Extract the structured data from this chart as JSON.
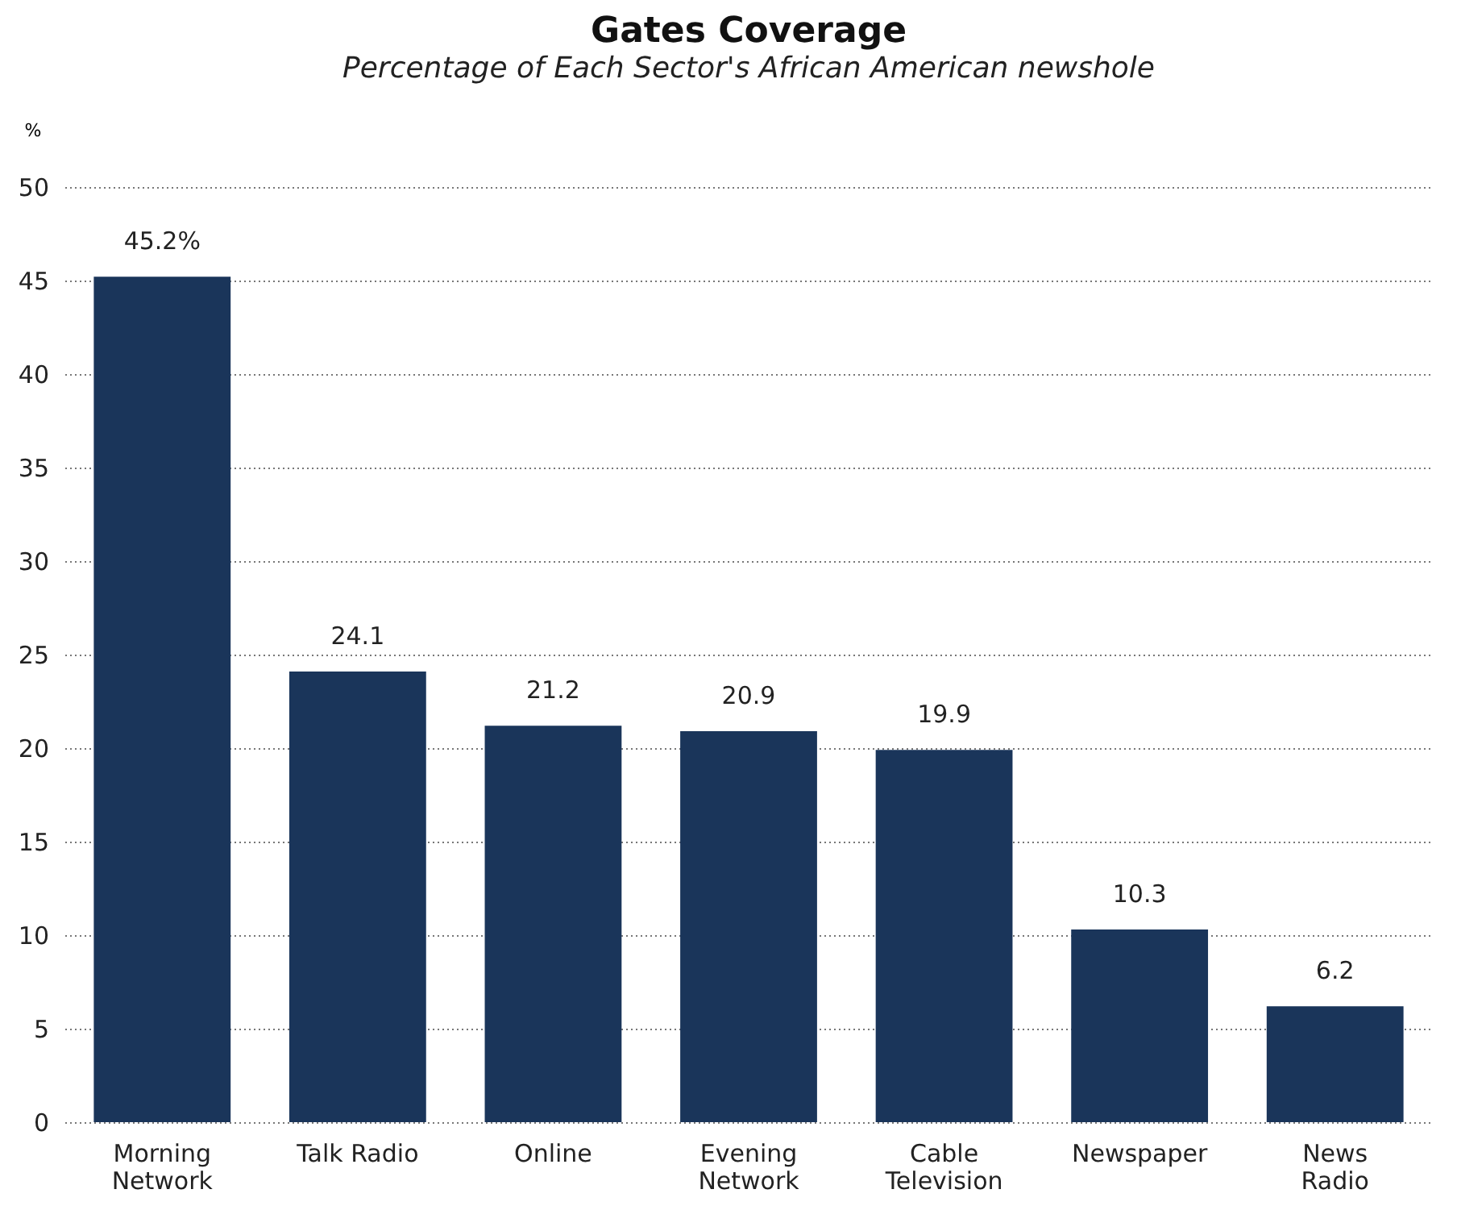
{
  "chart_data": {
    "type": "bar",
    "title": "Gates Coverage",
    "subtitle": "Percentage of Each Sector's African American newshole",
    "ylabel": "%",
    "categories": [
      "Morning\nNetwork",
      "Talk Radio",
      "Online",
      "Evening\nNetwork",
      "Cable\nTelevision",
      "Newspaper",
      "News\nRadio"
    ],
    "values": [
      45.2,
      24.1,
      21.2,
      20.9,
      19.9,
      10.3,
      6.2
    ],
    "value_labels": [
      "45.2%",
      "24.1",
      "21.2",
      "20.9",
      "19.9",
      "10.3",
      "6.2"
    ],
    "color": "#1a355a",
    "ylim": [
      0,
      50
    ],
    "yticks": [
      0,
      5,
      10,
      15,
      20,
      25,
      30,
      35,
      40,
      45,
      50
    ],
    "grid": "y"
  }
}
